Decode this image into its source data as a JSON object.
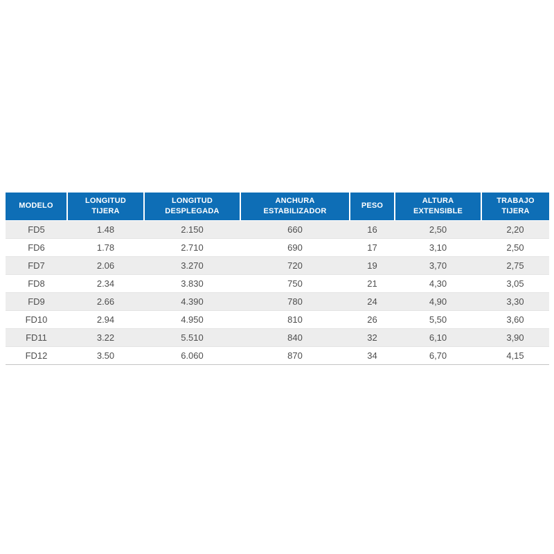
{
  "colors": {
    "header_background": "#0e6eb6",
    "header_text": "#ffffff",
    "row_stripe": "#ededed",
    "row_plain": "#ffffff",
    "body_text": "#4d4d4d",
    "bottom_border": "#c4c4c4"
  },
  "table": {
    "columns": [
      {
        "id": "modelo",
        "label": "MODELO"
      },
      {
        "id": "longitud-tijera",
        "label": "LONGITUD\nTIJERA"
      },
      {
        "id": "longitud-desplegada",
        "label": "LONGITUD\nDESPLEGADA"
      },
      {
        "id": "anchura-estabilizador",
        "label": "ANCHURA\nESTABILIZADOR"
      },
      {
        "id": "peso",
        "label": "PESO"
      },
      {
        "id": "altura-extensible",
        "label": "ALTURA\nEXTENSIBLE"
      },
      {
        "id": "trabajo-tijera",
        "label": "TRABAJO\nTIJERA"
      }
    ],
    "rows": [
      [
        "FD5",
        "1.48",
        "2.150",
        "660",
        "16",
        "2,50",
        "2,20"
      ],
      [
        "FD6",
        "1.78",
        "2.710",
        "690",
        "17",
        "3,10",
        "2,50"
      ],
      [
        "FD7",
        "2.06",
        "3.270",
        "720",
        "19",
        "3,70",
        "2,75"
      ],
      [
        "FD8",
        "2.34",
        "3.830",
        "750",
        "21",
        "4,30",
        "3,05"
      ],
      [
        "FD9",
        "2.66",
        "4.390",
        "780",
        "24",
        "4,90",
        "3,30"
      ],
      [
        "FD10",
        "2.94",
        "4.950",
        "810",
        "26",
        "5,50",
        "3,60"
      ],
      [
        "FD11",
        "3.22",
        "5.510",
        "840",
        "32",
        "6,10",
        "3,90"
      ],
      [
        "FD12",
        "3.50",
        "6.060",
        "870",
        "34",
        "6,70",
        "4,15"
      ]
    ]
  }
}
